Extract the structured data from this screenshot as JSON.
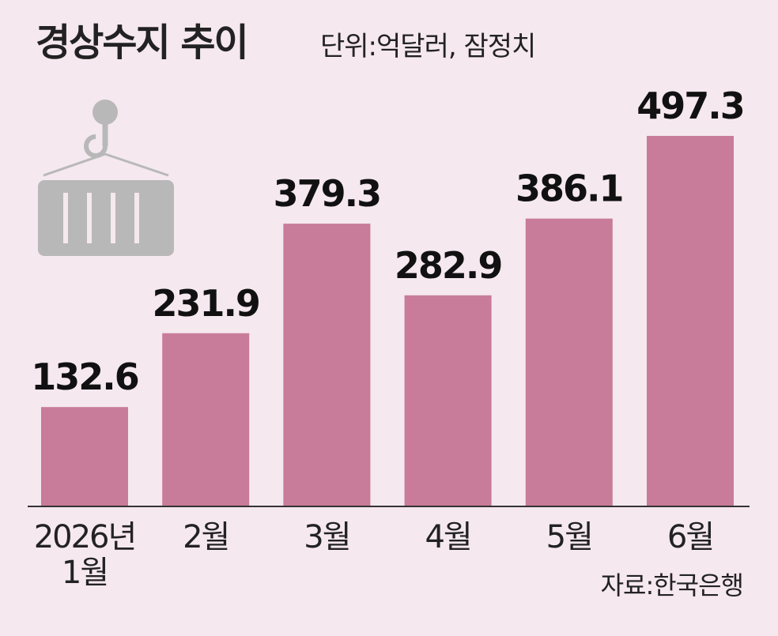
{
  "chart_data": {
    "type": "bar",
    "title": "경상수지 추이",
    "subtitle": "단위:억달러, 잠정치",
    "source": "자료:한국은행",
    "categories": [
      "2026년 1월",
      "2월",
      "3월",
      "4월",
      "5월",
      "6월"
    ],
    "values": [
      132.6,
      231.9,
      379.3,
      282.9,
      386.1,
      497.3
    ],
    "color": "#c97b9a"
  }
}
